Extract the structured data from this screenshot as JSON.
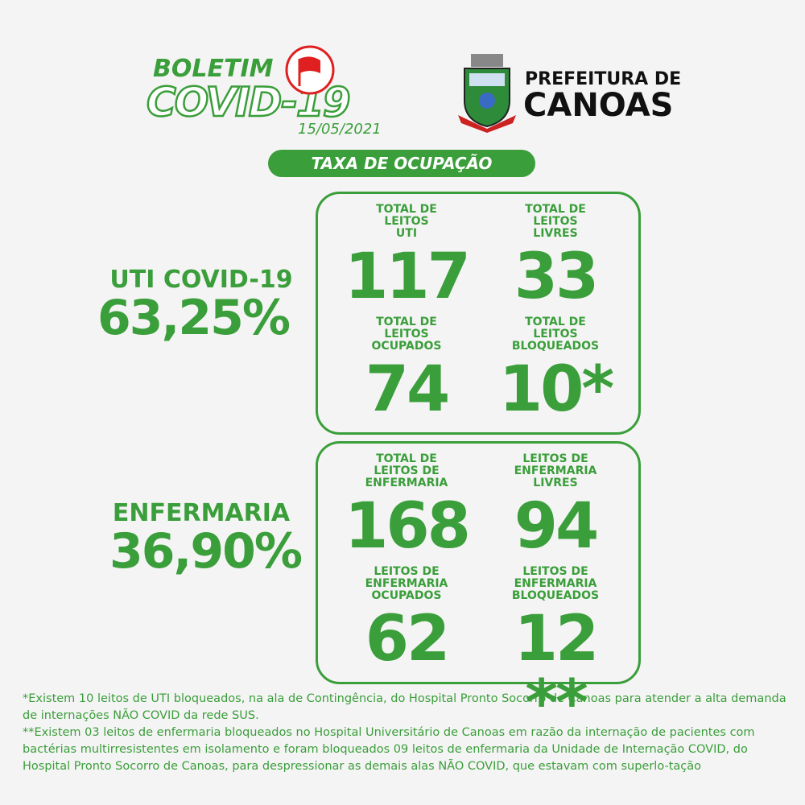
{
  "header": {
    "title": "BOLETIM",
    "subtitle": "COVID-19",
    "date": "15/05/2021",
    "org_line1": "PREFEITURA DE",
    "org_line2": "CANOAS"
  },
  "badge": "TAXA DE OCUPAÇÃO",
  "sections": [
    {
      "label": "UTI COVID-19",
      "rate": "63,25%",
      "cells": [
        {
          "label": [
            "TOTAL DE",
            "LEITOS",
            "UTI"
          ],
          "value": "117"
        },
        {
          "label": [
            "TOTAL DE",
            "LEITOS",
            "LIVRES"
          ],
          "value": "33"
        },
        {
          "label": [
            "TOTAL DE",
            "LEITOS",
            "OCUPADOS"
          ],
          "value": "74"
        },
        {
          "label": [
            "TOTAL DE",
            "LEITOS",
            "BLOQUEADOS"
          ],
          "value": "10*"
        }
      ]
    },
    {
      "label": "ENFERMARIA",
      "rate": "36,90%",
      "cells": [
        {
          "label": [
            "TOTAL DE",
            "LEITOS DE",
            "ENFERMARIA"
          ],
          "value": "168"
        },
        {
          "label": [
            "LEITOS DE",
            "ENFERMARIA",
            "LIVRES"
          ],
          "value": "94"
        },
        {
          "label": [
            "LEITOS DE",
            "ENFERMARIA",
            "OCUPADOS"
          ],
          "value": "62"
        },
        {
          "label": [
            "LEITOS DE",
            "ENFERMARIA",
            "BLOQUEADOS"
          ],
          "value": "12 **"
        }
      ]
    }
  ],
  "footnotes": [
    "*Existem 10 leitos de UTI bloqueados, na ala de Contingência, do Hospital Pronto Socorro de Canoas para atender a alta demanda de internações NÃO COVID da rede SUS.",
    "**Existem 03 leitos de enfermaria bloqueados no Hospital Universitário de Canoas em razão da internação de pacientes com bactérias multirresistentes em isolamento e foram bloqueados 09 leitos de enfermaria da Unidade de Internação COVID, do Hospital Pronto Socorro de Canoas, para despressionar as demais alas NÃO COVID, que estavam com superlo-tação"
  ]
}
